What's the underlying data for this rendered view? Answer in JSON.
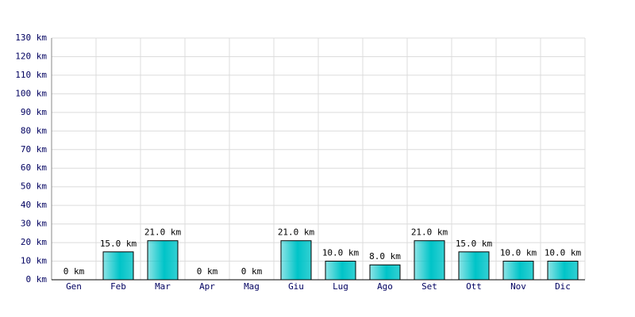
{
  "chart_data": {
    "type": "bar",
    "categories": [
      "Gen",
      "Feb",
      "Mar",
      "Apr",
      "Mag",
      "Giu",
      "Lug",
      "Ago",
      "Set",
      "Ott",
      "Nov",
      "Dic"
    ],
    "values": [
      0,
      15,
      21,
      0,
      0,
      21,
      10,
      8,
      21,
      15,
      10,
      10
    ],
    "value_labels": [
      "0 km",
      "15.0 km",
      "21.0 km",
      "0 km",
      "0 km",
      "21.0 km",
      "10.0 km",
      "8.0 km",
      "21.0 km",
      "15.0 km",
      "10.0 km",
      "10.0 km"
    ],
    "color": "#00c4c8",
    "ylim": [
      0,
      130
    ],
    "yticks": [
      {
        "value": 0,
        "label": "0 km"
      },
      {
        "value": 10,
        "label": "10 km"
      },
      {
        "value": 20,
        "label": "20 km"
      },
      {
        "value": 30,
        "label": "30 km"
      },
      {
        "value": 40,
        "label": "40 km"
      },
      {
        "value": 50,
        "label": "50 km"
      },
      {
        "value": 60,
        "label": "60 km"
      },
      {
        "value": 70,
        "label": "70 km"
      },
      {
        "value": 80,
        "label": "80 km"
      },
      {
        "value": 90,
        "label": "90 km"
      },
      {
        "value": 100,
        "label": "100 km"
      },
      {
        "value": 110,
        "label": "110 km"
      },
      {
        "value": 120,
        "label": "120 km"
      },
      {
        "value": 130,
        "label": "130 km"
      }
    ],
    "grid": true
  }
}
